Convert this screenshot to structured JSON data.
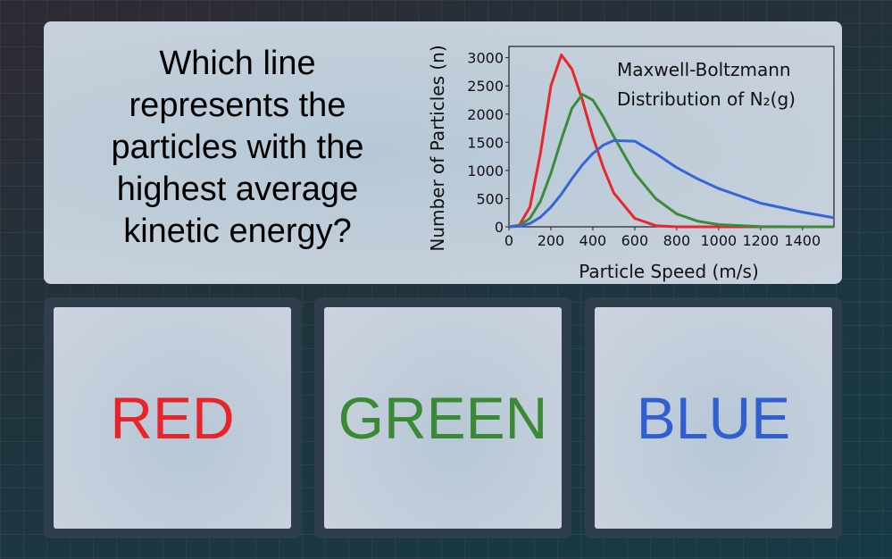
{
  "question": "Which line represents the particles with the highest average kinetic energy?",
  "chart_data": {
    "type": "line",
    "title": [
      "Maxwell-Boltzmann",
      "Distribution of N₂(g)"
    ],
    "x_label": "Particle Speed (m/s)",
    "y_label": "Number of Particles (n)",
    "x": [
      0,
      50,
      100,
      150,
      200,
      250,
      300,
      350,
      400,
      450,
      500,
      600,
      700,
      800,
      900,
      1000,
      1200,
      1400,
      1550
    ],
    "series": [
      {
        "color": "#e8262b",
        "values": [
          0,
          30,
          350,
          1300,
          2500,
          3050,
          2800,
          2250,
          1600,
          1050,
          600,
          150,
          20,
          0,
          0,
          0,
          0,
          0,
          0
        ]
      },
      {
        "color": "#3d8a3b",
        "values": [
          0,
          20,
          150,
          450,
          950,
          1550,
          2100,
          2350,
          2250,
          1950,
          1600,
          950,
          500,
          230,
          100,
          40,
          5,
          0,
          0
        ]
      },
      {
        "color": "#3565d6",
        "values": [
          0,
          10,
          60,
          170,
          350,
          580,
          850,
          1100,
          1300,
          1450,
          1530,
          1520,
          1300,
          1050,
          850,
          680,
          420,
          260,
          160
        ]
      }
    ],
    "xlim": [
      0,
      1550
    ],
    "xticks": [
      0,
      200,
      400,
      600,
      800,
      1000,
      1200,
      1400
    ],
    "ylim": [
      0,
      3200
    ],
    "yticks": [
      0,
      500,
      1000,
      1500,
      2000,
      2500,
      3000
    ]
  },
  "answers": [
    {
      "label": "RED",
      "color": "#e8242a"
    },
    {
      "label": "GREEN",
      "color": "#3a8a35"
    },
    {
      "label": "BLUE",
      "color": "#2f5fd0"
    }
  ]
}
